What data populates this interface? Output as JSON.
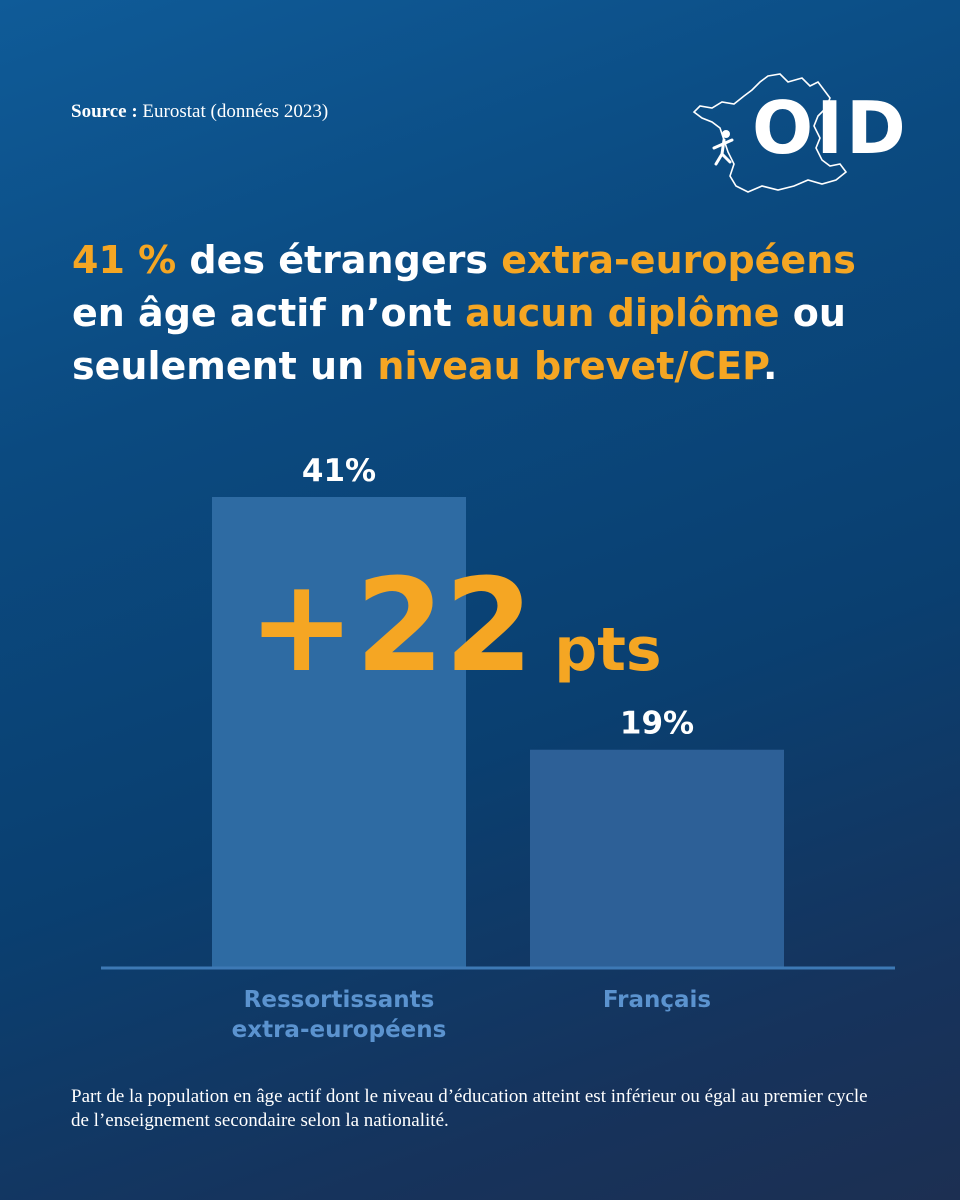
{
  "source": {
    "label": "Source :",
    "text": "Eurostat (données 2023)"
  },
  "logo": {
    "text": "OID"
  },
  "headline": {
    "p1": "41 %",
    "p2": " des étrangers ",
    "p3": "extra-européens",
    "p4": "en âge actif n’ont ",
    "p5": "aucun diplôme",
    "p6": " ou",
    "p7": "seulement un ",
    "p8": "niveau brevet/CEP",
    "p9": "."
  },
  "chart_data": {
    "type": "bar",
    "categories": [
      "Ressortissants extra-européens",
      "Français"
    ],
    "category_lines": [
      [
        "Ressortissants",
        "extra-européens"
      ],
      [
        "Français"
      ]
    ],
    "values": [
      41,
      19
    ],
    "value_labels": [
      "41%",
      "19%"
    ],
    "annotation": {
      "big": "+22",
      "unit": " pts"
    },
    "ylim": [
      0,
      41
    ],
    "grid": false,
    "colors": {
      "bar1": "#2e6ba3",
      "bar2": "#2d6097",
      "accent": "#f5a623",
      "axis": "#3d79b5",
      "category_label": "#5b93cf"
    }
  },
  "caption": "Part de la population en âge actif dont le niveau d’éducation atteint est inférieur ou égal au premier cycle de l’enseignement secondaire selon la nationalité."
}
